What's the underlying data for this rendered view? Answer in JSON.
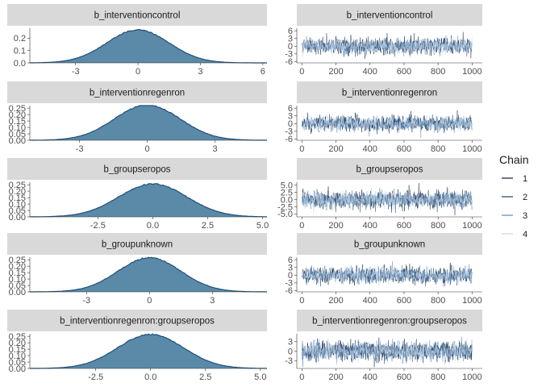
{
  "legend": {
    "title": "Chain",
    "items": [
      {
        "label": "1",
        "color": "#0b1e3d"
      },
      {
        "label": "2",
        "color": "#1d3f66"
      },
      {
        "label": "3",
        "color": "#5a8ab8"
      },
      {
        "label": "4",
        "color": "#c6d9ec"
      }
    ]
  },
  "colors": {
    "density_fill": "#5b8aa8",
    "density_line": "#1f4e79",
    "strip": "#d9d9d9"
  },
  "chart_data": [
    {
      "type": "area",
      "panel": "density",
      "title": "b_interventioncontrol",
      "mean": 0,
      "sd": 1.5,
      "xlim": [
        -5.2,
        6.2
      ],
      "ylim": [
        0,
        0.28
      ],
      "xticks": [
        -3,
        0,
        3,
        6
      ],
      "xtick_labels": [
        "-3",
        "0",
        "3",
        "6"
      ],
      "yticks": [
        0.0,
        0.1,
        0.2
      ],
      "ytick_labels": [
        "0.0",
        "0.1",
        "0.2"
      ]
    },
    {
      "type": "line",
      "panel": "trace",
      "title": "b_interventioncontrol",
      "xlim": [
        -30,
        1060
      ],
      "ylim": [
        -6.5,
        7
      ],
      "xticks": [
        0,
        200,
        400,
        600,
        800,
        1000
      ],
      "xtick_labels": [
        "0",
        "200",
        "400",
        "600",
        "800",
        "1000"
      ],
      "yticks": [
        -6,
        -3,
        0,
        3,
        6
      ],
      "ytick_labels": [
        "-6",
        "-3",
        "0",
        "3",
        "6"
      ],
      "series_sd": 1.5,
      "iterations": 1000,
      "chains": 4
    },
    {
      "type": "area",
      "panel": "density",
      "title": "b_interventionregenron",
      "mean": 0,
      "sd": 1.45,
      "xlim": [
        -5.2,
        5.3
      ],
      "ylim": [
        0,
        0.27
      ],
      "xticks": [
        -3,
        0,
        3
      ],
      "xtick_labels": [
        "-3",
        "0",
        "3"
      ],
      "yticks": [
        0.0,
        0.05,
        0.1,
        0.15,
        0.2,
        0.25
      ],
      "ytick_labels": [
        "0.00",
        "0.05",
        "0.10",
        "0.15",
        "0.20",
        "0.25"
      ]
    },
    {
      "type": "line",
      "panel": "trace",
      "title": "b_interventionregenron",
      "xlim": [
        -30,
        1060
      ],
      "ylim": [
        -6.5,
        7
      ],
      "xticks": [
        0,
        200,
        400,
        600,
        800,
        1000
      ],
      "xtick_labels": [
        "0",
        "200",
        "400",
        "600",
        "800",
        "1000"
      ],
      "yticks": [
        -6,
        -3,
        0,
        3,
        6
      ],
      "ytick_labels": [
        "-6",
        "-3",
        "0",
        "3",
        "6"
      ],
      "series_sd": 1.45,
      "iterations": 1000,
      "chains": 4
    },
    {
      "type": "area",
      "panel": "density",
      "title": "b_groupseropos",
      "mean": 0,
      "sd": 1.55,
      "xlim": [
        -5.6,
        5.2
      ],
      "ylim": [
        0,
        0.27
      ],
      "xticks": [
        -2.5,
        0,
        2.5,
        5.0
      ],
      "xtick_labels": [
        "-2.5",
        "0.0",
        "2.5",
        "5.0"
      ],
      "yticks": [
        0.0,
        0.05,
        0.1,
        0.15,
        0.2,
        0.25
      ],
      "ytick_labels": [
        "0.00",
        "0.05",
        "0.10",
        "0.15",
        "0.20",
        "0.25"
      ]
    },
    {
      "type": "line",
      "panel": "trace",
      "title": "b_groupseropos",
      "xlim": [
        -30,
        1060
      ],
      "ylim": [
        -6,
        6
      ],
      "xticks": [
        0,
        200,
        400,
        600,
        800,
        1000
      ],
      "xtick_labels": [
        "0",
        "200",
        "400",
        "600",
        "800",
        "1000"
      ],
      "yticks": [
        -5.0,
        -2.5,
        0.0,
        2.5,
        5.0
      ],
      "ytick_labels": [
        "-5.0",
        "-2.5",
        "0.0",
        "2.5",
        "5.0"
      ],
      "series_sd": 1.55,
      "iterations": 1000,
      "chains": 4
    },
    {
      "type": "area",
      "panel": "density",
      "title": "b_groupunknown",
      "mean": 0,
      "sd": 1.5,
      "xlim": [
        -5.7,
        5.6
      ],
      "ylim": [
        0,
        0.27
      ],
      "xticks": [
        -3,
        0,
        3
      ],
      "xtick_labels": [
        "-3",
        "0",
        "3"
      ],
      "yticks": [
        0.0,
        0.05,
        0.1,
        0.15,
        0.2,
        0.25
      ],
      "ytick_labels": [
        "0.00",
        "0.05",
        "0.10",
        "0.15",
        "0.20",
        "0.25"
      ]
    },
    {
      "type": "line",
      "panel": "trace",
      "title": "b_groupunknown",
      "xlim": [
        -30,
        1060
      ],
      "ylim": [
        -6.5,
        7
      ],
      "xticks": [
        0,
        200,
        400,
        600,
        800,
        1000
      ],
      "xtick_labels": [
        "0",
        "200",
        "400",
        "600",
        "800",
        "1000"
      ],
      "yticks": [
        -6,
        -3,
        0,
        3,
        6
      ],
      "ytick_labels": [
        "-6",
        "-3",
        "0",
        "3",
        "6"
      ],
      "series_sd": 1.5,
      "iterations": 1000,
      "chains": 4
    },
    {
      "type": "area",
      "panel": "density",
      "title": "b_interventionregenron:groupseropos",
      "mean": 0,
      "sd": 1.5,
      "xlim": [
        -5.5,
        5.3
      ],
      "ylim": [
        0,
        0.27
      ],
      "xticks": [
        -2.5,
        0,
        2.5,
        5.0
      ],
      "xtick_labels": [
        "-2.5",
        "0.0",
        "2.5",
        "5.0"
      ],
      "yticks": [
        0.0,
        0.05,
        0.1,
        0.15,
        0.2,
        0.25
      ],
      "ytick_labels": [
        "0.00",
        "0.05",
        "0.10",
        "0.15",
        "0.20",
        "0.25"
      ]
    },
    {
      "type": "line",
      "panel": "trace",
      "title": "b_interventionregenron:groupseropos",
      "xlim": [
        -30,
        1060
      ],
      "ylim": [
        -5.5,
        5.5
      ],
      "xticks": [
        0,
        200,
        400,
        600,
        800,
        1000
      ],
      "xtick_labels": [
        "0",
        "200",
        "400",
        "600",
        "800",
        "1000"
      ],
      "yticks": [
        -3,
        0,
        3
      ],
      "ytick_labels": [
        "-3",
        "0",
        "3"
      ],
      "series_sd": 1.5,
      "iterations": 1000,
      "chains": 4
    }
  ]
}
